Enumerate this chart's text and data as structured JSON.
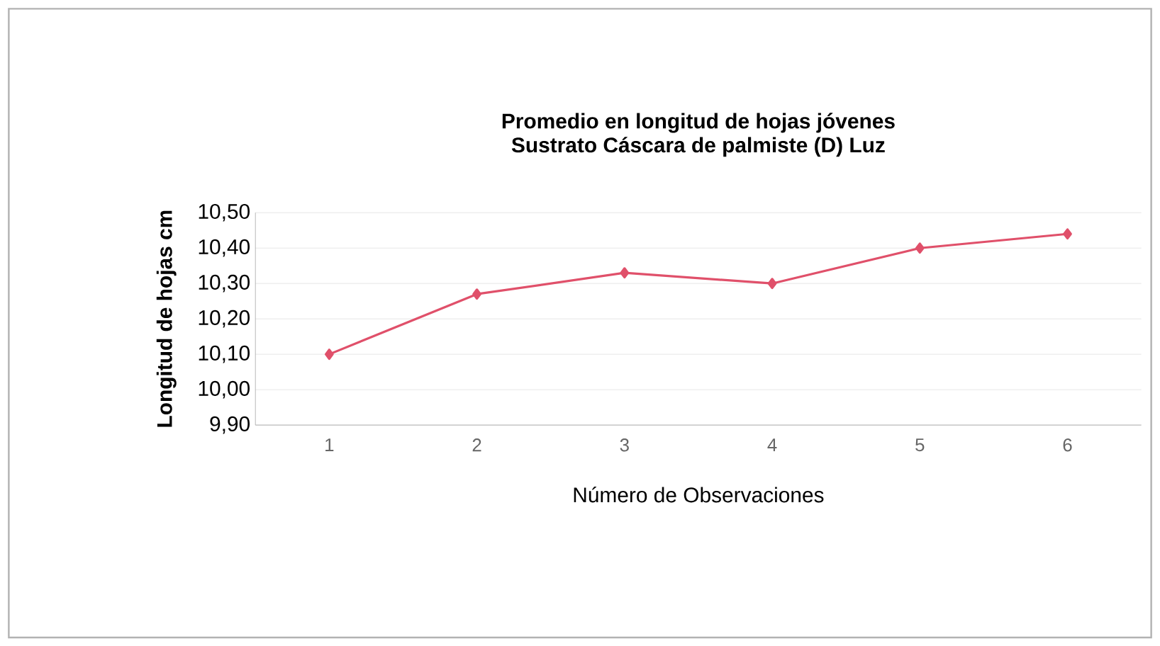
{
  "chart_data": {
    "type": "line",
    "title": "Promedio en longitud de hojas jóvenes",
    "subtitle": "Sustrato Cáscara de palmiste (D) Luz",
    "xlabel": "Número de Observaciones",
    "ylabel": "Longitud de hojas cm",
    "categories": [
      "1",
      "2",
      "3",
      "4",
      "5",
      "6"
    ],
    "series": [
      {
        "color": "#e0506a",
        "values": [
          10.1,
          10.27,
          10.33,
          10.3,
          10.4,
          10.44
        ]
      }
    ],
    "ylim": [
      9.9,
      10.5
    ],
    "yticks": [
      {
        "value": 9.9,
        "label": "9,90"
      },
      {
        "value": 10.0,
        "label": "10,00"
      },
      {
        "value": 10.1,
        "label": "10,10"
      },
      {
        "value": 10.2,
        "label": "10,20"
      },
      {
        "value": 10.3,
        "label": "10,30"
      },
      {
        "value": 10.4,
        "label": "10,40"
      },
      {
        "value": 10.5,
        "label": "10,50"
      }
    ],
    "grid": "y",
    "marker": "diamond",
    "line_style": "solid"
  }
}
